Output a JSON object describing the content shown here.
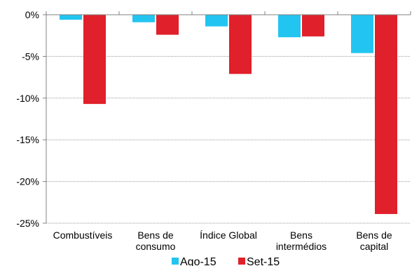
{
  "chart_data": {
    "type": "bar",
    "title": "",
    "xlabel": "",
    "ylabel": "",
    "categories": [
      [
        "Combustíveis"
      ],
      [
        "Bens de",
        "consumo"
      ],
      [
        "Índice Global"
      ],
      [
        "Bens",
        "intermédios"
      ],
      [
        "Bens de",
        "capital"
      ]
    ],
    "series": [
      {
        "name": "Ago-15",
        "color": "#22c5f0",
        "values": [
          -0.6,
          -0.9,
          -1.4,
          -2.7,
          -4.6
        ]
      },
      {
        "name": "Set-15",
        "color": "#e0202a",
        "values": [
          -10.7,
          -2.4,
          -7.1,
          -2.6,
          -23.9
        ]
      }
    ],
    "yticks": [
      0,
      -5,
      -10,
      -15,
      -20,
      -25
    ],
    "ytick_labels": [
      "0%",
      "-5%",
      "-10%",
      "-15%",
      "-20%",
      "-25%"
    ],
    "ylim": [
      -25,
      0
    ],
    "grid": true,
    "legend": "bottom"
  }
}
